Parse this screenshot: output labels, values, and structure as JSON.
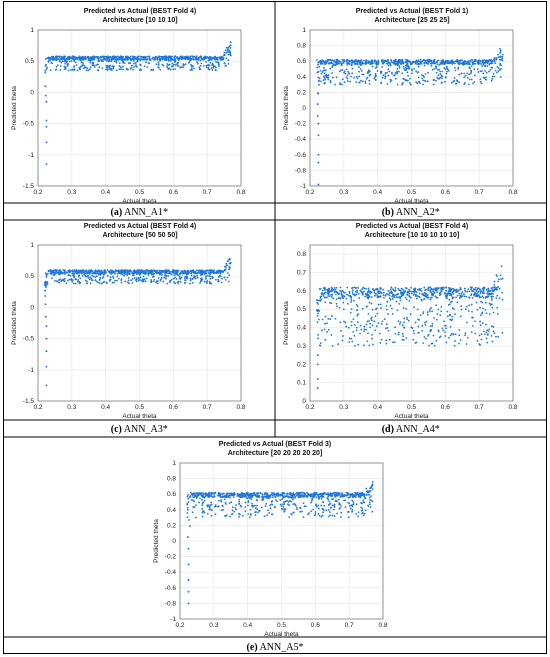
{
  "colors": {
    "marker": "#1f77d8"
  },
  "chart_data": [
    {
      "type": "scatter",
      "title": "Predicted vs Actual (BEST Fold 4)",
      "subtitle": "Architecture [10  10  10]",
      "xlabel": "Actual theta",
      "ylabel": "Predicted theta",
      "xlim": [
        0.2,
        0.8
      ],
      "ylim": [
        -1.5,
        1
      ],
      "xticks": [
        "0.2",
        "0.3",
        "0.4",
        "0.5",
        "0.6",
        "0.7",
        "0.8"
      ],
      "yticks": [
        "1",
        "0.5",
        "0",
        "-0.5",
        "-1",
        "-1.5"
      ],
      "grid": true,
      "cloud": {
        "x_min": 0.22,
        "x_max": 0.77,
        "band_low": 0.35,
        "band_high": 0.58,
        "low_tail_min": 0.3,
        "head_max": 0.85
      },
      "outliers": [
        [
          0.225,
          -0.15
        ],
        [
          0.225,
          -0.45
        ],
        [
          0.225,
          -0.55
        ],
        [
          0.225,
          -0.8
        ],
        [
          0.225,
          -1.15
        ],
        [
          0.222,
          0.1
        ],
        [
          0.223,
          -0.05
        ]
      ],
      "caption": {
        "letter": "(a)",
        "text": " ANN_A1*"
      }
    },
    {
      "type": "scatter",
      "title": "Predicted vs Actual (BEST Fold 1)",
      "subtitle": "Architecture [25  25  25]",
      "xlabel": "Actual theta",
      "ylabel": "Predicted theta",
      "xlim": [
        0.2,
        0.8
      ],
      "ylim": [
        -1,
        1
      ],
      "xticks": [
        "0.2",
        "0.3",
        "0.4",
        "0.5",
        "0.6",
        "0.7",
        "0.8"
      ],
      "yticks": [
        "1",
        "0.8",
        "0.6",
        "0.4",
        "0.2",
        "0",
        "-0.2",
        "-0.4",
        "-0.6",
        "-0.8",
        "-1"
      ],
      "grid": true,
      "cloud": {
        "x_min": 0.22,
        "x_max": 0.77,
        "band_low": 0.3,
        "band_high": 0.62,
        "low_tail_min": 0.25,
        "head_max": 0.82
      },
      "outliers": [
        [
          0.225,
          -0.2
        ],
        [
          0.225,
          -0.35
        ],
        [
          0.225,
          -0.6
        ],
        [
          0.225,
          -0.7
        ],
        [
          0.225,
          -0.98
        ],
        [
          0.223,
          0.05
        ],
        [
          0.223,
          -0.1
        ]
      ],
      "caption": {
        "letter": "(b)",
        "text": " ANN_A2*"
      }
    },
    {
      "type": "scatter",
      "title": "Predicted vs Actual (BEST Fold 4)",
      "subtitle": "Architecture [50  50  50]",
      "xlabel": "Actual theta",
      "ylabel": "Predicted theta",
      "xlim": [
        0.2,
        0.8
      ],
      "ylim": [
        -1.5,
        1
      ],
      "xticks": [
        "0.2",
        "0.3",
        "0.4",
        "0.5",
        "0.6",
        "0.7",
        "0.8"
      ],
      "yticks": [
        "1",
        "0.5",
        "0",
        "-0.5",
        "-1",
        "-1.5"
      ],
      "grid": true,
      "cloud": {
        "x_min": 0.22,
        "x_max": 0.77,
        "band_low": 0.38,
        "band_high": 0.6,
        "low_tail_min": 0.3,
        "head_max": 0.88
      },
      "outliers": [
        [
          0.225,
          -0.3
        ],
        [
          0.225,
          -0.5
        ],
        [
          0.225,
          -0.7
        ],
        [
          0.225,
          -0.95
        ],
        [
          0.225,
          -1.25
        ],
        [
          0.222,
          0.05
        ],
        [
          0.223,
          -0.15
        ]
      ],
      "caption": {
        "letter": "(c)",
        "text": " ANN_A3*"
      }
    },
    {
      "type": "scatter",
      "title": "Predicted vs Actual (BEST Fold 4)",
      "subtitle": "Architecture [10  10  10  10  10]",
      "xlabel": "Actual theta",
      "ylabel": "Predicted theta",
      "xlim": [
        0.2,
        0.8
      ],
      "ylim": [
        0,
        0.85
      ],
      "xticks": [
        "0.2",
        "0.3",
        "0.4",
        "0.5",
        "0.6",
        "0.7",
        "0.8"
      ],
      "yticks": [
        "0.8",
        "0.7",
        "0.6",
        "0.5",
        "0.4",
        "0.3",
        "0.2",
        "0.1",
        "0"
      ],
      "grid": true,
      "cloud": {
        "x_min": 0.22,
        "x_max": 0.77,
        "band_low": 0.3,
        "band_high": 0.62,
        "low_tail_min": 0.3,
        "head_max": 0.83
      },
      "outliers": [
        [
          0.223,
          0.2
        ],
        [
          0.223,
          0.12
        ],
        [
          0.223,
          0.07
        ],
        [
          0.223,
          0.25
        ]
      ],
      "caption": {
        "letter": "(d)",
        "text": " ANN_A4*"
      }
    },
    {
      "type": "scatter",
      "title": "Predicted vs Actual (BEST Fold 3)",
      "subtitle": "Architecture [20  20  20  20  20]",
      "xlabel": "Actual theta",
      "ylabel": "Predicted theta",
      "xlim": [
        0.2,
        0.8
      ],
      "ylim": [
        -1,
        1
      ],
      "xticks": [
        "0.2",
        "0.3",
        "0.4",
        "0.5",
        "0.6",
        "0.7",
        "0.8"
      ],
      "yticks": [
        "1",
        "0.8",
        "0.6",
        "0.4",
        "0.2",
        "0",
        "-0.2",
        "-0.4",
        "-0.6",
        "-0.8",
        "-1"
      ],
      "grid": true,
      "cloud": {
        "x_min": 0.22,
        "x_max": 0.77,
        "band_low": 0.3,
        "band_high": 0.62,
        "low_tail_min": 0.25,
        "head_max": 0.8
      },
      "outliers": [
        [
          0.225,
          -0.1
        ],
        [
          0.225,
          -0.3
        ],
        [
          0.225,
          -0.5
        ],
        [
          0.225,
          -0.65
        ],
        [
          0.225,
          -0.8
        ],
        [
          0.223,
          0.05
        ]
      ],
      "caption": {
        "letter": "(e)",
        "text": " ANN_A5*"
      }
    }
  ]
}
